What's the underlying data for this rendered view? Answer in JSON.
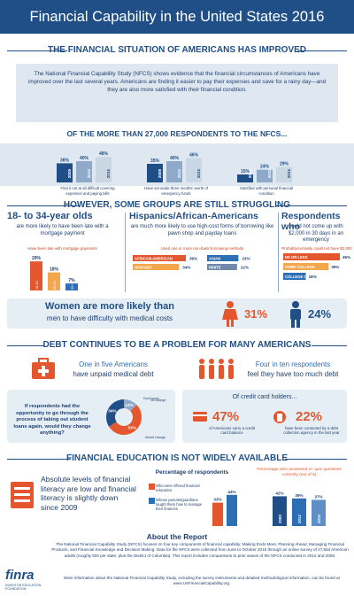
{
  "header": {
    "title": "Financial Capability in the United States 2016"
  },
  "section1": {
    "heading": "THE FINANCIAL SITUATION OF AMERICANS HAS IMPROVED",
    "intro": "The National Financial Capability Study (NFCS) shows evidence that the financial circumstances of Americans have improved over the last several years. Americans are finding it easier to pay their expenses and save for a rainy day—and they are also more satisfied with their financial condition.",
    "subheading": "OF THE MORE THAN 27,000 RESPONDENTS TO THE NFCS...",
    "captions": [
      "Find it not at all difficult covering expenses and paying bills",
      "Have set aside three months' worth of emergency funds",
      "Satisfied with personal financial condition"
    ]
  },
  "section2": {
    "heading": "HOWEVER, SOME GROUPS ARE STILL STRUGGLING",
    "col1": {
      "title": "18- to 34-year olds",
      "text": "are more likely to have been late with a mortgage payment",
      "tag": "Have been late with mortgage payments"
    },
    "col2": {
      "title": "Hispanics/African-Americans",
      "text": "are much more likely to use high-cost forms of borrowing like pawn shop and payday loans",
      "tag": "Used one or more non-bank borrowing methods"
    },
    "col3": {
      "title": "Respondents who",
      "text": "could not come up with $2,000 in 30 days in an emergency",
      "tag": "Probably/certainly could not have $2,000"
    },
    "women": {
      "text1": "Women are more likely than",
      "text2": "men to have difficulty with medical costs"
    }
  },
  "section3": {
    "heading": "DEBT CONTINUES TO BE A PROBLEM FOR MANY AMERICANS",
    "medical": {
      "highlight": "One in five Americans",
      "rest": "have unpaid medical debt"
    },
    "toomuch": {
      "highlight": "Four in ten respondents",
      "rest": "feel they have too much debt"
    },
    "student": "If respondents had the opportunity to go through the process of taking out student loans again, would they change anything?",
    "cc_head": "Of credit card holders...",
    "cc1": {
      "value": "47%",
      "text": "of Americans carry a credit card balance"
    },
    "cc2": {
      "value": "22%",
      "text": "have been contacted by a debt collection agency in the last year"
    }
  },
  "section4": {
    "heading": "FINANCIAL EDUCATION IS NOT WIDELY AVAILABLE",
    "text": "Absolute levels of financial literacy are low and financial literacy is slightly down since 2009",
    "pct_head": "Percentage of respondents",
    "legend1": "Who were offered financial education",
    "legend2": "Whose parents/guardians taught them how to manage their finances",
    "quiz_head": "Percentage who answered 4+ quiz questions correctly (out of 5)"
  },
  "about": {
    "title": "About the Report",
    "p1": "The National Financial Capability Study (NFCS) focuses on four key components of financial capability: Making Ends Meet, Planning Ahead, Managing Financial Products, and Financial Knowledge and Decision Making. Data for the NFCS were collected from June to October 2015 through an online survey of 27,564 American adults (roughly 500 per state, plus the District of Columbia). This report includes comparisons to prior waves of the NFCS conducted in 2012 and 2009.",
    "p2": "More information about the National Financial Capability Study, including the survey instruments and detailed methodological information, can be found at www.USFinancialCapability.org.",
    "logo": "finra",
    "logo_sub": "INVESTOR EDUCATION FOUNDATION"
  },
  "chart_data": [
    {
      "type": "bar",
      "title": "Find it not at all difficult covering expenses and paying bills",
      "categories": [
        "2009",
        "2012",
        "2015"
      ],
      "values": [
        36,
        40,
        48
      ],
      "labels": [
        "36%",
        "40%",
        "48%"
      ],
      "colors": [
        "#1f4f86",
        "#8fa9c8",
        "#c9d6e4"
      ]
    },
    {
      "type": "bar",
      "title": "Have set aside three months' worth of emergency funds",
      "categories": [
        "2009",
        "2012",
        "2015"
      ],
      "values": [
        35,
        40,
        46
      ],
      "labels": [
        "35%",
        "40%",
        "46%"
      ],
      "colors": [
        "#1f4f86",
        "#8fa9c8",
        "#c9d6e4"
      ]
    },
    {
      "type": "bar",
      "title": "Satisfied with personal financial condition",
      "categories": [
        "2009",
        "2012",
        "2015"
      ],
      "values": [
        15,
        24,
        29
      ],
      "labels": [
        "15%",
        "24%",
        "29%"
      ],
      "colors": [
        "#1f4f86",
        "#8fa9c8",
        "#c9d6e4"
      ]
    },
    {
      "type": "bar",
      "title": "Have been late with mortgage payments",
      "categories": [
        "18-34",
        "35-54",
        "55+"
      ],
      "values": [
        29,
        18,
        7
      ],
      "labels": [
        "29%",
        "18%",
        "7%"
      ],
      "colors": [
        "#e4572e",
        "#f3a64b",
        "#2d6fb4"
      ]
    },
    {
      "type": "bar",
      "title": "Used one or more non-bank borrowing methods",
      "categories": [
        "AFRICAN-AMERICAN",
        "HISPANIC",
        "ASIAN",
        "WHITE"
      ],
      "values": [
        39,
        34,
        23,
        22
      ],
      "labels": [
        "39%",
        "34%",
        "23%",
        "22%"
      ]
    },
    {
      "type": "bar",
      "title": "Probably/certainly could not have $2,000",
      "categories": [
        "HS OR LESS",
        "SOME COLLEGE",
        "COLLEGE OR MORE"
      ],
      "values": [
        45,
        36,
        18
      ],
      "labels": [
        "45%",
        "36%",
        "18%"
      ]
    },
    {
      "type": "bar",
      "title": "Difficulty with medical costs",
      "categories": [
        "Women",
        "Men"
      ],
      "values": [
        31,
        24
      ],
      "labels": [
        "31%",
        "24%"
      ]
    },
    {
      "type": "pie",
      "title": "Would change anything about student loans",
      "categories": [
        "Don't know",
        "Would change",
        "No change"
      ],
      "values": [
        13,
        53,
        34
      ],
      "labels": [
        "13%",
        "53%",
        "34%"
      ]
    },
    {
      "type": "bar",
      "title": "Percentage of respondents",
      "categories": [
        "Offered financial education",
        "Parents taught finances"
      ],
      "values": [
        33,
        44
      ],
      "labels": [
        "33%",
        "44%"
      ]
    },
    {
      "type": "bar",
      "title": "Percentage who answered 4+ quiz questions correctly (out of 5)",
      "categories": [
        "2009",
        "2012",
        "2015"
      ],
      "values": [
        42,
        39,
        37
      ],
      "labels": [
        "42%",
        "39%",
        "37%"
      ]
    }
  ]
}
